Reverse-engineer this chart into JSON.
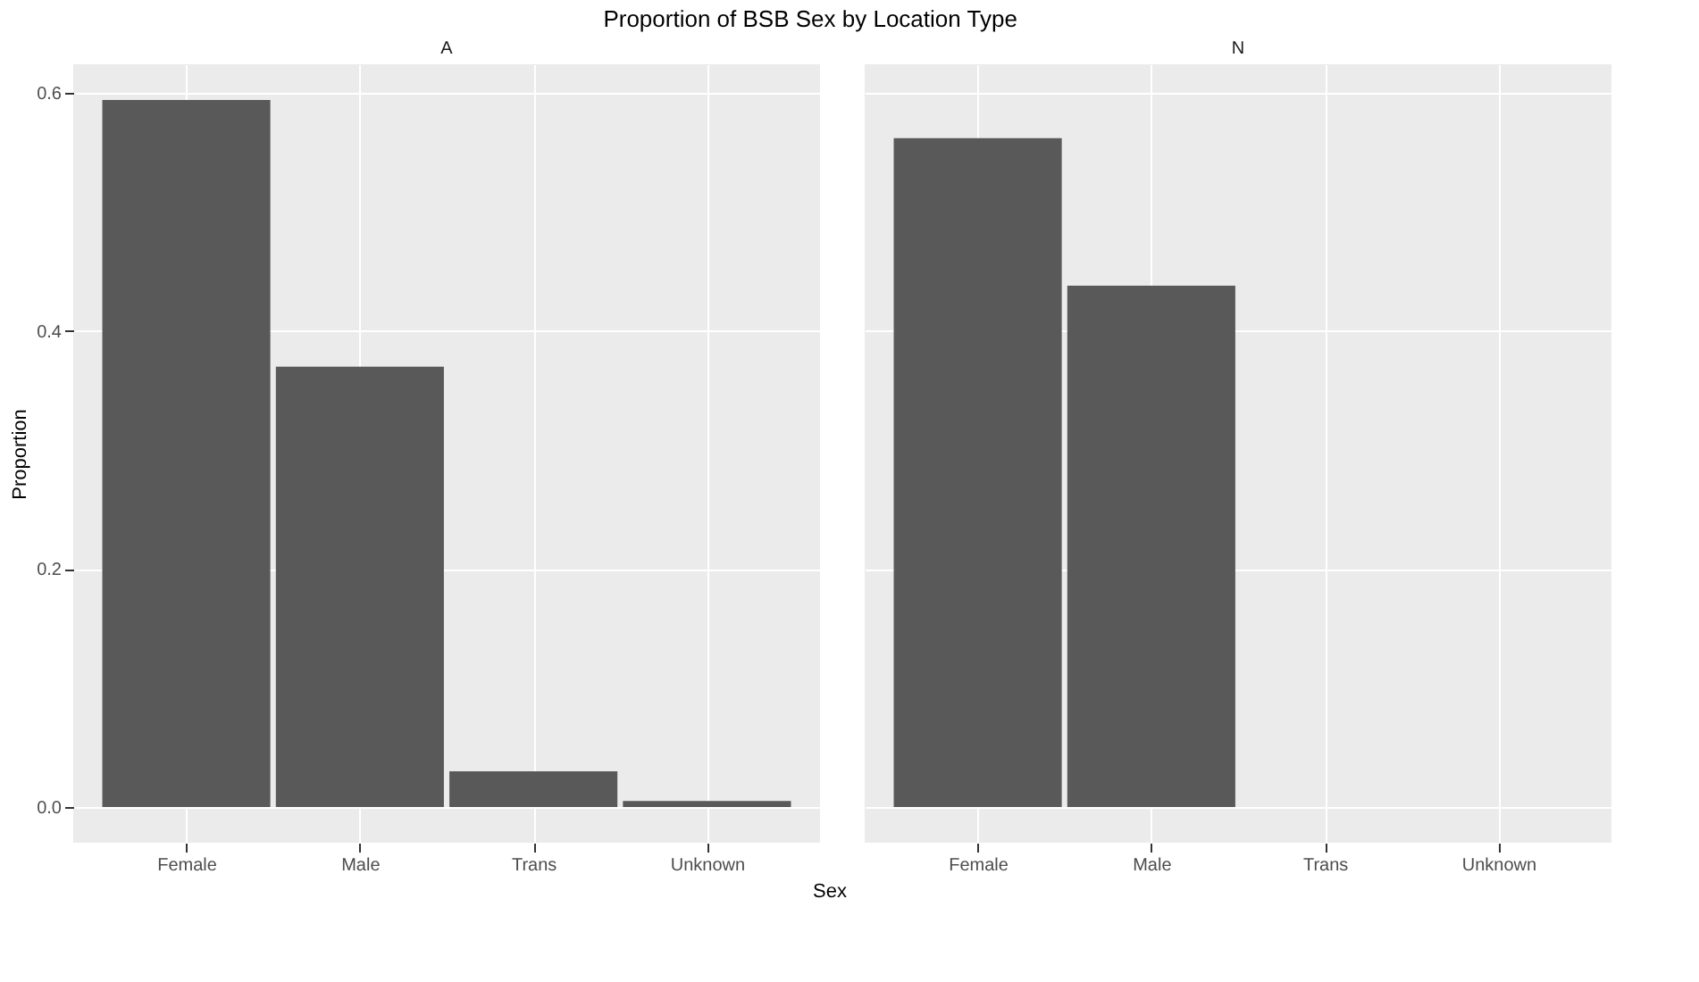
{
  "chart_data": [
    {
      "type": "bar",
      "title": "A",
      "annotations": [
        "Proportion of BSB Sex by Location Type"
      ],
      "xlabel": "Sex",
      "ylabel": "Proportion",
      "categories": [
        "Female",
        "Male",
        "Trans",
        "Unknown"
      ],
      "values": [
        0.594,
        0.37,
        0.03,
        0.005
      ],
      "color": "#595959",
      "ylim": [
        -0.03,
        0.624
      ],
      "yticks": [
        {
          "value": 0,
          "label": "0.0"
        },
        0.2,
        0.4,
        0.6
      ],
      "grid": true
    },
    {
      "type": "bar",
      "title": "N",
      "categories": [
        "Female",
        "Male",
        "Trans",
        "Unknown"
      ],
      "values": [
        0.562,
        0.438,
        null,
        null
      ],
      "color": "#595959",
      "ylim": [
        -0.03,
        0.624
      ],
      "yticks": [
        0,
        0.2,
        0.4,
        0.6
      ],
      "grid": true,
      "tick_labels": "x"
    }
  ]
}
